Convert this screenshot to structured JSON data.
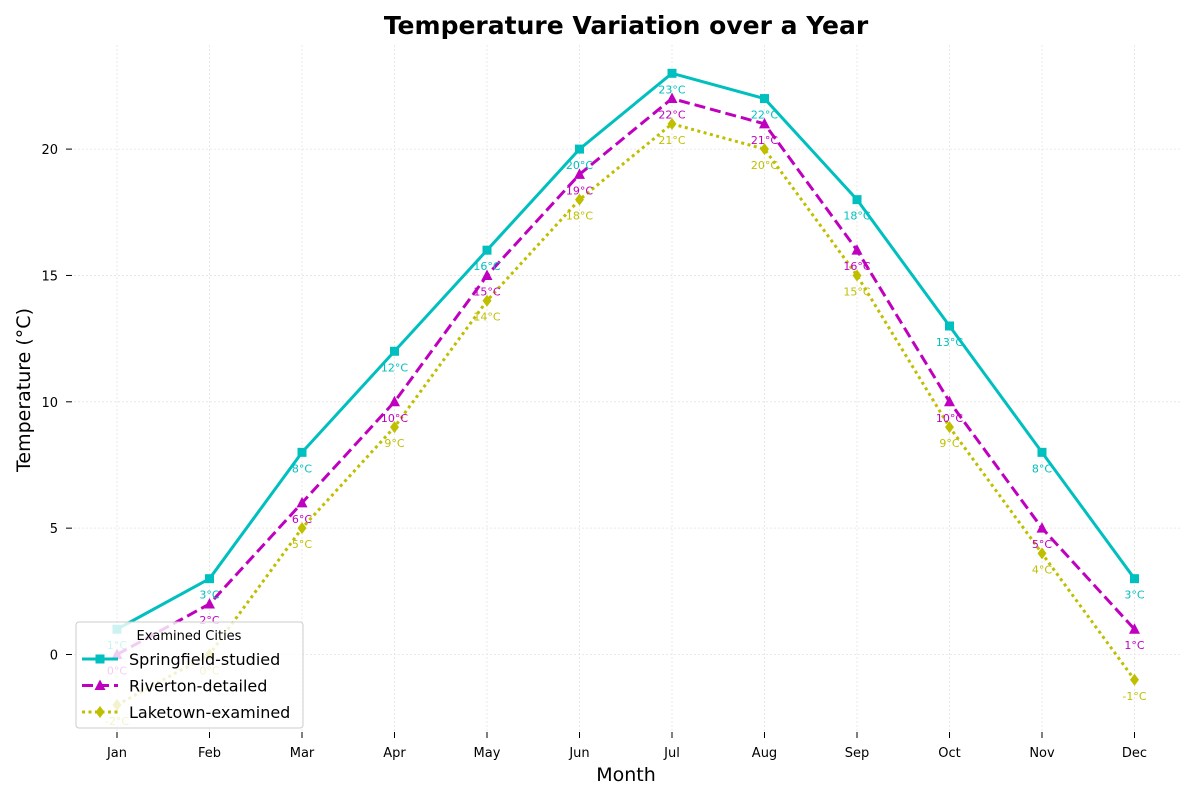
{
  "chart_data": {
    "type": "line",
    "title": "Temperature Variation over a Year",
    "xlabel": "Month",
    "ylabel": "Temperature (°C)",
    "categories": [
      "Jan",
      "Feb",
      "Mar",
      "Apr",
      "May",
      "Jun",
      "Jul",
      "Aug",
      "Sep",
      "Oct",
      "Nov",
      "Dec"
    ],
    "ylim": [
      -3,
      24
    ],
    "yticks": [
      0,
      5,
      10,
      15,
      20
    ],
    "grid": true,
    "legend": {
      "title": "Examined Cities",
      "placement": "lower-left"
    },
    "series": [
      {
        "name": "Springfield-studied",
        "values": [
          1,
          3,
          8,
          12,
          16,
          20,
          23,
          22,
          18,
          13,
          8,
          3
        ],
        "color": "#00bfbf",
        "line_style": "solid",
        "marker": "square"
      },
      {
        "name": "Riverton-detailed",
        "values": [
          0,
          2,
          6,
          10,
          15,
          19,
          22,
          21,
          16,
          10,
          5,
          1
        ],
        "color": "#bf00bf",
        "line_style": "dashed",
        "marker": "triangle"
      },
      {
        "name": "Laketown-examined",
        "values": [
          -2,
          0,
          5,
          9,
          14,
          18,
          21,
          20,
          15,
          9,
          4,
          -1
        ],
        "color": "#bfbf00",
        "line_style": "dotted",
        "marker": "diamond"
      }
    ],
    "value_label_suffix": "°C"
  }
}
